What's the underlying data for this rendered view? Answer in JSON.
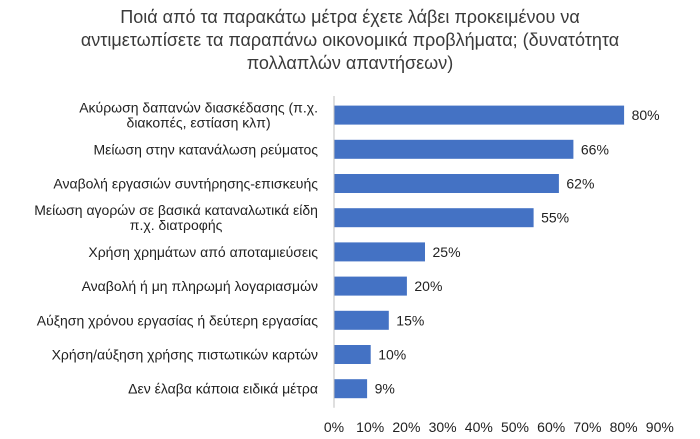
{
  "chart_data": {
    "type": "bar",
    "orientation": "horizontal",
    "title": "Ποιά από τα παρακάτω μέτρα έχετε λάβει προκειμένου να αντιμετωπίσετε τα παραπάνω οικονομικά προβλήματα; (δυνατότητα πολλαπλών απαντήσεων)",
    "title_lines": [
      "Ποιά από τα παρακάτω μέτρα έχετε λάβει προκειμένου να",
      "αντιμετωπίσετε τα παραπάνω οικονομικά προβλήματα; (δυνατότητα",
      "πολλαπλών απαντήσεων)"
    ],
    "categories": [
      "Ακύρωση δαπανών διασκέδασης (π.χ. διακοπές, εστίαση κλπ)",
      "Μείωση στην κατανάλωση ρεύματος",
      "Αναβολή εργασιών συντήρησης-επισκευής",
      "Μείωση αγορών σε βασικά καταναλωτικά είδη π.χ. διατροφής",
      "Χρήση χρημάτων από αποταμιεύσεις",
      "Αναβολή ή μη πληρωμή λογαριασμών",
      "Αύξηση χρόνου εργασίας ή δεύτερη εργασίας",
      "Χρήση/αύξηση χρήσης πιστωτικών καρτών",
      "Δεν έλαβα κάποια ειδικά μέτρα"
    ],
    "category_lines": [
      [
        "Ακύρωση δαπανών διασκέδασης (π.χ.",
        "διακοπές, εστίαση κλπ)"
      ],
      [
        "Μείωση στην κατανάλωση ρεύματος"
      ],
      [
        "Αναβολή εργασιών συντήρησης-επισκευής"
      ],
      [
        "Μείωση αγορών σε βασικά καταναλωτικά είδη",
        "π.χ. διατροφής"
      ],
      [
        "Χρήση χρημάτων από αποταμιεύσεις"
      ],
      [
        "Αναβολή ή μη πληρωμή λογαριασμών"
      ],
      [
        "Αύξηση χρόνου εργασίας ή δεύτερη εργασίας"
      ],
      [
        "Χρήση/αύξηση χρήσης πιστωτικών καρτών"
      ],
      [
        "Δεν έλαβα κάποια ειδικά μέτρα"
      ]
    ],
    "values": [
      80,
      66,
      62,
      55,
      25,
      20,
      15,
      10,
      9
    ],
    "value_labels": [
      "80%",
      "66%",
      "62%",
      "55%",
      "25%",
      "20%",
      "15%",
      "10%",
      "9%"
    ],
    "xlim": [
      0,
      90
    ],
    "x_ticks": [
      0,
      10,
      20,
      30,
      40,
      50,
      60,
      70,
      80,
      90
    ],
    "x_tick_labels": [
      "0%",
      "10%",
      "20%",
      "30%",
      "40%",
      "50%",
      "60%",
      "70%",
      "80%",
      "90%"
    ],
    "xlabel": "",
    "ylabel": "",
    "grid": false,
    "legend": "none",
    "bar_color": "#4472c4"
  }
}
